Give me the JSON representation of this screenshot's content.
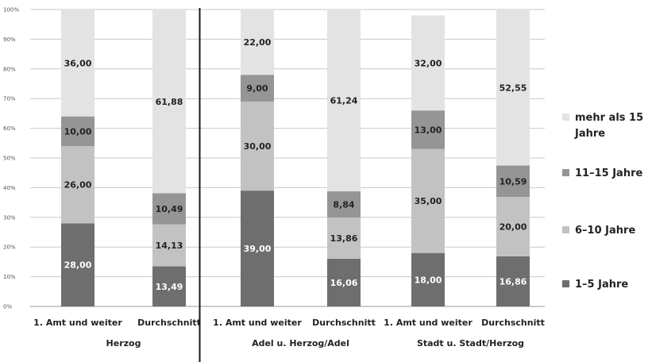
{
  "chart_data": {
    "type": "bar",
    "stacked": true,
    "categories": [
      "1. Amt und weiter",
      "Durchschnitt",
      "1. Amt und weiter",
      "Durchschnitt",
      "1. Amt und weiter",
      "Durchschnitt"
    ],
    "groups": [
      {
        "label": "Herzog",
        "categories": [
          0,
          1
        ]
      },
      {
        "label": "Adel u. Herzog/Adel",
        "categories": [
          2,
          3
        ]
      },
      {
        "label": "Stadt u. Stadt/Herzog",
        "categories": [
          4,
          5
        ]
      }
    ],
    "series": [
      {
        "name": "1–5 Jahre",
        "color": "#6e6e6e",
        "label_color": "#ffffff",
        "values": [
          28.0,
          13.49,
          39.0,
          16.06,
          18.0,
          16.86
        ],
        "labels": [
          "28,00",
          "13,49",
          "39,00",
          "16,06",
          "18,00",
          "16,86"
        ]
      },
      {
        "name": "6–10 Jahre",
        "color": "#c2c2c2",
        "label_color": "#222222",
        "values": [
          26.0,
          14.13,
          30.0,
          13.86,
          35.0,
          20.0
        ],
        "labels": [
          "26,00",
          "14,13",
          "30,00",
          "13,86",
          "35,00",
          "20,00"
        ]
      },
      {
        "name": "11–15 Jahre",
        "color": "#959595",
        "label_color": "#222222",
        "values": [
          10.0,
          10.49,
          9.0,
          8.84,
          13.0,
          10.59
        ],
        "labels": [
          "10,00",
          "10,49",
          "9,00",
          "8,84",
          "13,00",
          "10,59"
        ]
      },
      {
        "name": "mehr als 15 Jahre",
        "color": "#e3e3e3",
        "label_color": "#222222",
        "values": [
          36.0,
          61.88,
          22.0,
          61.24,
          32.0,
          52.55
        ],
        "labels": [
          "36,00",
          "61,88",
          "22,00",
          "61,24",
          "32,00",
          "52,55"
        ]
      }
    ],
    "legend_order": [
      3,
      2,
      1,
      0
    ],
    "legend_text": [
      [
        "mehr als 15",
        "Jahre"
      ],
      [
        "11–15 Jahre"
      ],
      [
        "6–10 Jahre"
      ],
      [
        "1–5 Jahre"
      ]
    ],
    "yticks": [
      "0%",
      "10%",
      "20%",
      "30%",
      "40%",
      "50%",
      "60%",
      "70%",
      "80%",
      "90%",
      "100%"
    ],
    "ylim": [
      0,
      100
    ],
    "grid": true,
    "legend_position": "right",
    "separator_after_category": 1
  }
}
